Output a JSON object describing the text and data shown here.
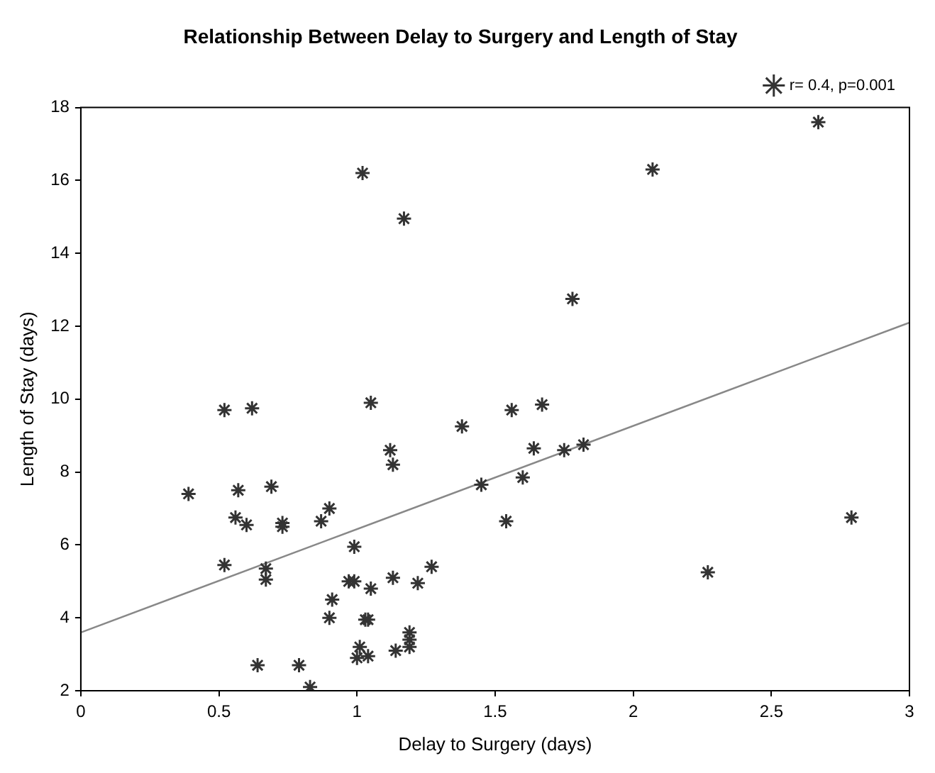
{
  "chart_data": {
    "type": "scatter",
    "title": "Relationship Between Delay to Surgery and Length of Stay",
    "xlabel": "Delay to Surgery (days)",
    "ylabel": "Length of Stay (days)",
    "xlim": [
      0,
      3
    ],
    "xticks": [
      0,
      0.5,
      1,
      1.5,
      2,
      2.5,
      3
    ],
    "ylim": [
      2,
      18
    ],
    "yticks": [
      2,
      4,
      6,
      8,
      10,
      12,
      14,
      16,
      18
    ],
    "grid": false,
    "legend": "top right",
    "marker": "cross",
    "series": [
      {
        "name": "r= 0.4, p=0.001",
        "color": "#333333",
        "x": [
          0.39,
          0.52,
          0.62,
          0.57,
          0.56,
          0.6,
          0.52,
          0.67,
          0.67,
          0.69,
          0.73,
          0.73,
          0.87,
          0.9,
          0.64,
          0.79,
          0.83,
          0.99,
          0.97,
          0.99,
          0.91,
          0.9,
          1.05,
          1.13,
          1.22,
          1.27,
          1.03,
          1.04,
          1.01,
          1.0,
          1.04,
          1.14,
          1.19,
          1.19,
          1.19,
          1.12,
          1.13,
          1.02,
          1.17,
          1.05,
          1.38,
          1.45,
          1.54,
          1.56,
          1.64,
          1.67,
          1.6,
          1.75,
          1.82,
          1.78,
          2.07,
          2.67,
          2.27,
          2.79
        ],
        "values": [
          7.4,
          9.7,
          9.75,
          7.5,
          6.75,
          6.55,
          5.45,
          5.35,
          5.05,
          7.6,
          6.6,
          6.5,
          6.65,
          7.0,
          2.7,
          2.7,
          2.1,
          5.95,
          5.0,
          5.0,
          4.5,
          4.0,
          4.8,
          5.1,
          4.95,
          5.4,
          3.95,
          3.95,
          3.2,
          2.9,
          2.95,
          3.1,
          3.6,
          3.4,
          3.2,
          8.6,
          8.2,
          16.2,
          14.95,
          9.9,
          9.25,
          7.65,
          6.65,
          9.7,
          8.65,
          9.85,
          7.85,
          8.6,
          8.75,
          12.75,
          16.3,
          17.6,
          5.25,
          6.75
        ]
      },
      {
        "type": "line",
        "color": "#888888",
        "marker": "none",
        "line_style": "solid",
        "x": [
          0,
          3
        ],
        "values": [
          3.6,
          12.1
        ]
      }
    ]
  }
}
